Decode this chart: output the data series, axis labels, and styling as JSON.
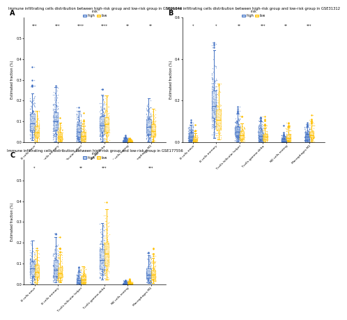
{
  "panels": [
    {
      "label": "A",
      "title": "Immune infiltrating cells distribution between high-risk group and low-risk group in GSE01846",
      "categories": [
        "B cells naive",
        "B cells memory",
        "T cells follicular helper",
        "T cells gamma delta",
        "NK cells resting",
        "Macrophages M1"
      ],
      "sig_labels": [
        "***",
        "***",
        "****",
        "****",
        "**",
        "**"
      ],
      "ylim": [
        0,
        0.6
      ],
      "yticks": [
        0.0,
        0.1,
        0.2,
        0.3,
        0.4,
        0.5
      ],
      "ylabel": "Estimated fraction (%)"
    },
    {
      "label": "B",
      "title": "Immune infiltrating cells distribution between high-risk group and low-risk group in GSE31312",
      "categories": [
        "B cells naive",
        "B cells memory",
        "T cells follicular helper",
        "T cells gamma delta",
        "NK cells resting",
        "Macrophages M1"
      ],
      "sig_labels": [
        "*",
        "*",
        "**",
        "***",
        "**",
        "***"
      ],
      "ylim": [
        0,
        0.6
      ],
      "yticks": [
        0.0,
        0.2,
        0.4,
        0.6
      ],
      "ylabel": "Estimated fraction (%)"
    },
    {
      "label": "C",
      "title": "Immune infiltrating cells distribution between high-risk group and low-risk group in GSE177556",
      "categories": [
        "B cells naive",
        "B cells memory",
        "T cells follicular helper",
        "T cells gamma delta",
        "NK cells resting",
        "Macrophages M1"
      ],
      "sig_labels": [
        "*",
        "",
        "**",
        "***",
        "",
        "***"
      ],
      "ylim": [
        0,
        0.6
      ],
      "yticks": [
        0.0,
        0.1,
        0.2,
        0.3,
        0.4,
        0.5
      ],
      "ylabel": "Estimated fraction (%)"
    }
  ],
  "high_color": "#4472C4",
  "low_color": "#FFC000",
  "box_high_face": "#AEC6E8",
  "box_low_face": "#FFE080",
  "background_color": "#ffffff",
  "legend_label_high": "high",
  "legend_label_low": "low"
}
